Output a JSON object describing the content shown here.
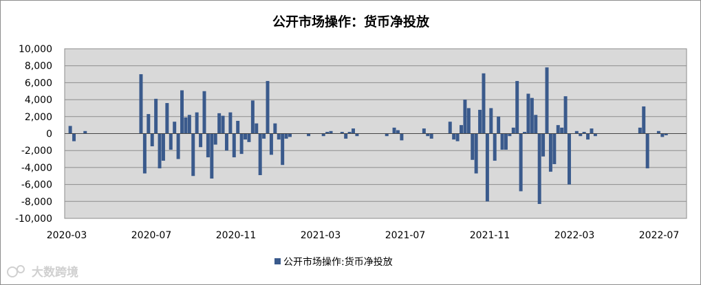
{
  "chart_data": {
    "type": "bar",
    "title": "公开市场操作：货币净投放",
    "legend": "公开市场操作:货币净投放",
    "legend_position": "bottom",
    "grid": true,
    "color": "#3a5a8c",
    "ylim": [
      -10000,
      10000
    ],
    "yticks": [
      "10,000",
      "8,000",
      "6,000",
      "4,000",
      "2,000",
      "0",
      "-2,000",
      "-4,000",
      "-6,000",
      "-8,000",
      "-10,000"
    ],
    "ytick_values": [
      10000,
      8000,
      6000,
      4000,
      2000,
      0,
      -2000,
      -4000,
      -6000,
      -8000,
      -10000
    ],
    "xticks": [
      "2020-03",
      "2020-07",
      "2020-11",
      "2021-03",
      "2021-07",
      "2021-11",
      "2022-03",
      "2022-07"
    ],
    "values": [
      0,
      900,
      -900,
      0,
      0,
      300,
      0,
      0,
      0,
      0,
      0,
      0,
      0,
      0,
      0,
      0,
      0,
      0,
      0,
      0,
      7000,
      -4700,
      2300,
      -1500,
      4100,
      -4100,
      -3200,
      3600,
      -1900,
      1400,
      -3000,
      5100,
      1900,
      2200,
      -5000,
      2500,
      -1600,
      5000,
      -2800,
      -5300,
      -1300,
      2400,
      2100,
      -2000,
      2500,
      -2800,
      1500,
      -2400,
      -700,
      -1000,
      3900,
      1200,
      -4900,
      -600,
      6200,
      -2500,
      1200,
      -700,
      -3700,
      -600,
      -400,
      0,
      0,
      0,
      0,
      -300,
      0,
      0,
      0,
      -300,
      200,
      300,
      0,
      0,
      200,
      -600,
      200,
      600,
      -300,
      0,
      0,
      0,
      0,
      0,
      0,
      0,
      -300,
      0,
      700,
      400,
      -800,
      0,
      0,
      0,
      0,
      0,
      600,
      -300,
      -600,
      0,
      0,
      0,
      0,
      1400,
      -700,
      -900,
      1000,
      4000,
      3000,
      -3100,
      -4700,
      2800,
      7100,
      -8000,
      3000,
      -3200,
      2000,
      -1900,
      -1900,
      -300,
      700,
      6200,
      -6800,
      200,
      4700,
      4200,
      2200,
      -8300,
      -2700,
      7800,
      -4500,
      -3600,
      1000,
      700,
      4400,
      -6000,
      0,
      300,
      -300,
      200,
      -700,
      600,
      -300,
      0,
      0,
      0,
      0,
      0,
      0,
      0,
      0,
      0,
      0,
      0,
      700,
      3200,
      -4100,
      0,
      0,
      300,
      -400,
      -200,
      0,
      0,
      0,
      0,
      0
    ]
  },
  "watermark": "大数跨境"
}
